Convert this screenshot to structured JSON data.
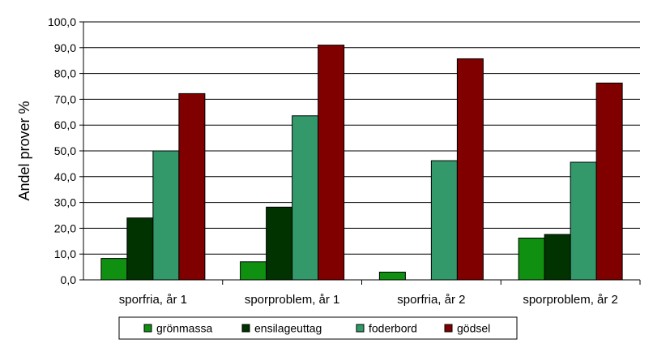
{
  "chart_data": {
    "type": "bar",
    "title": "",
    "xlabel": "",
    "ylabel": "Andel prover %",
    "ylim": [
      0,
      100
    ],
    "y_ticks": [
      "0,0",
      "10,0",
      "20,0",
      "30,0",
      "40,0",
      "50,0",
      "60,0",
      "70,0",
      "80,0",
      "90,0",
      "100,0"
    ],
    "grid": true,
    "legend_position": "bottom",
    "categories": [
      "sporfria, år 1",
      "sporproblem, år 1",
      "sporfria, år 2",
      "sporproblem, år 2"
    ],
    "series": [
      {
        "name": "grönmassa",
        "color": "#109010",
        "values": [
          8.3,
          7.0,
          3.0,
          16.2
        ]
      },
      {
        "name": "ensilageuttag",
        "color": "#003300",
        "values": [
          24.0,
          28.2,
          0,
          17.6
        ]
      },
      {
        "name": "foderbord",
        "color": "#33996B",
        "values": [
          50.0,
          63.6,
          46.2,
          45.6
        ]
      },
      {
        "name": "gödsel",
        "color": "#800000",
        "values": [
          72.2,
          91.0,
          85.7,
          76.3
        ]
      }
    ]
  }
}
